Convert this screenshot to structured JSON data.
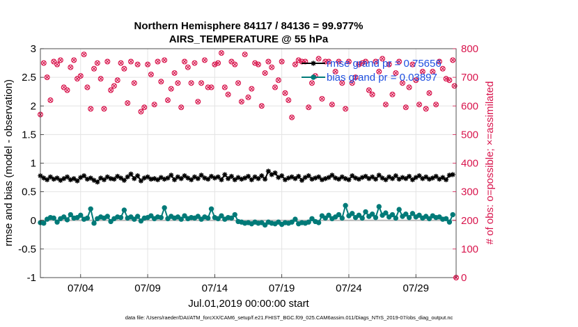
{
  "chart_data": {
    "type": "line",
    "title": "Northern Hemisphere 84117 / 84136 = 99.977%",
    "subtitle": "AIRS_TEMPERATURE @ 55 hPa",
    "xlabel": "Jul.01,2019 00:00:00 start",
    "ylabel": "rmse and bias (model - observation)",
    "y2label": "# of obs: o=possible; ×=assimilated",
    "footnote": "data file: /Users/raeder/DAI/ATM_forcXX/CAM6_setup/f.e21.FHIST_BGC.f09_025.CAM6assim.011/Diags_NTrS_2019-07/obs_diag_output.nc",
    "xlim": [
      0,
      31
    ],
    "ylim": [
      -1,
      3
    ],
    "y2lim": [
      0,
      800
    ],
    "x_ticks": [
      {
        "x": 3,
        "label": "07/04"
      },
      {
        "x": 8,
        "label": "07/09"
      },
      {
        "x": 13,
        "label": "07/14"
      },
      {
        "x": 18,
        "label": "07/19"
      },
      {
        "x": 23,
        "label": "07/24"
      },
      {
        "x": 28,
        "label": "07/29"
      }
    ],
    "y_ticks": [
      -1,
      -0.5,
      0,
      0.5,
      1,
      1.5,
      2,
      2.5,
      3
    ],
    "y_tick_labels": [
      "-1",
      "-0.5",
      "0",
      "0.5",
      "1",
      "1.5",
      "2",
      "2.5",
      "3"
    ],
    "y2_ticks": [
      0,
      100,
      200,
      300,
      400,
      500,
      600,
      700,
      800
    ],
    "y2_tick_labels": [
      "0",
      "100",
      "200",
      "300",
      "400",
      "500",
      "600",
      "700",
      "800"
    ],
    "grid": true,
    "legend_position": "top-right",
    "zero_line": 0,
    "series": [
      {
        "name": "rmse grand pr = 0.75656",
        "color": "#000000",
        "marker": "star",
        "axis": "left",
        "x": [
          0.0,
          0.25,
          0.5,
          0.75,
          1.0,
          1.25,
          1.5,
          1.75,
          2.0,
          2.25,
          2.5,
          2.75,
          3.0,
          3.25,
          3.5,
          3.75,
          4.0,
          4.25,
          4.5,
          4.75,
          5.0,
          5.25,
          5.5,
          5.75,
          6.0,
          6.25,
          6.5,
          6.75,
          7.0,
          7.25,
          7.5,
          7.75,
          8.0,
          8.25,
          8.5,
          8.75,
          9.0,
          9.25,
          9.5,
          9.75,
          10.0,
          10.25,
          10.5,
          10.75,
          11.0,
          11.25,
          11.5,
          11.75,
          12.0,
          12.25,
          12.5,
          12.75,
          13.0,
          13.25,
          13.5,
          13.75,
          14.0,
          14.25,
          14.5,
          14.75,
          15.0,
          15.25,
          15.5,
          15.75,
          16.0,
          16.25,
          16.5,
          16.75,
          17.0,
          17.25,
          17.5,
          17.75,
          18.0,
          18.25,
          18.5,
          18.75,
          19.0,
          19.25,
          19.5,
          19.75,
          20.0,
          20.25,
          20.5,
          20.75,
          21.0,
          21.25,
          21.5,
          21.75,
          22.0,
          22.25,
          22.5,
          22.75,
          23.0,
          23.25,
          23.5,
          23.75,
          24.0,
          24.25,
          24.5,
          24.75,
          25.0,
          25.25,
          25.5,
          25.75,
          26.0,
          26.25,
          26.5,
          26.75,
          27.0,
          27.25,
          27.5,
          27.75,
          28.0,
          28.25,
          28.5,
          28.75,
          29.0,
          29.25,
          29.5,
          29.75,
          30.0,
          30.25,
          30.5,
          30.75
        ],
        "values": [
          0.78,
          0.74,
          0.71,
          0.76,
          0.72,
          0.74,
          0.7,
          0.73,
          0.76,
          0.71,
          0.73,
          0.69,
          0.75,
          0.78,
          0.72,
          0.74,
          0.7,
          0.67,
          0.74,
          0.71,
          0.76,
          0.73,
          0.72,
          0.77,
          0.74,
          0.7,
          0.76,
          0.81,
          0.73,
          0.78,
          0.69,
          0.74,
          0.76,
          0.72,
          0.73,
          0.71,
          0.75,
          0.72,
          0.74,
          0.79,
          0.71,
          0.76,
          0.73,
          0.78,
          0.74,
          0.71,
          0.76,
          0.73,
          0.79,
          0.74,
          0.72,
          0.77,
          0.74,
          0.76,
          0.71,
          0.8,
          0.73,
          0.77,
          0.71,
          0.75,
          0.72,
          0.74,
          0.77,
          0.71,
          0.76,
          0.73,
          0.78,
          0.72,
          0.86,
          0.8,
          0.83,
          0.75,
          0.78,
          0.71,
          0.74,
          0.76,
          0.73,
          0.77,
          0.7,
          0.75,
          0.78,
          0.72,
          0.74,
          0.76,
          0.71,
          0.73,
          0.75,
          0.79,
          0.74,
          0.72,
          0.76,
          0.73,
          0.71,
          0.78,
          0.74,
          0.72,
          0.75,
          0.77,
          0.73,
          0.76,
          0.72,
          0.79,
          0.74,
          0.71,
          0.76,
          0.73,
          0.78,
          0.72,
          0.75,
          0.73,
          0.77,
          0.71,
          0.75,
          0.78,
          0.73,
          0.76,
          0.72,
          0.74,
          0.77,
          0.72,
          0.75,
          0.71,
          0.79,
          0.8
        ]
      },
      {
        "name": "bias grand pr = 0.03897",
        "color": "#007a78",
        "marker": "circle",
        "axis": "left",
        "x": [
          0.0,
          0.25,
          0.5,
          0.75,
          1.0,
          1.25,
          1.5,
          1.75,
          2.0,
          2.25,
          2.5,
          2.75,
          3.0,
          3.25,
          3.5,
          3.75,
          4.0,
          4.25,
          4.5,
          4.75,
          5.0,
          5.25,
          5.5,
          5.75,
          6.0,
          6.25,
          6.5,
          6.75,
          7.0,
          7.25,
          7.5,
          7.75,
          8.0,
          8.25,
          8.5,
          8.75,
          9.0,
          9.25,
          9.5,
          9.75,
          10.0,
          10.25,
          10.5,
          10.75,
          11.0,
          11.25,
          11.5,
          11.75,
          12.0,
          12.25,
          12.5,
          12.75,
          13.0,
          13.25,
          13.5,
          13.75,
          14.0,
          14.25,
          14.5,
          14.75,
          15.0,
          15.25,
          15.5,
          15.75,
          16.0,
          16.25,
          16.5,
          16.75,
          17.0,
          17.25,
          17.5,
          17.75,
          18.0,
          18.25,
          18.5,
          18.75,
          19.0,
          19.25,
          19.5,
          19.75,
          20.0,
          20.25,
          20.5,
          20.75,
          21.0,
          21.25,
          21.5,
          21.75,
          22.0,
          22.25,
          22.5,
          22.75,
          23.0,
          23.25,
          23.5,
          23.75,
          24.0,
          24.25,
          24.5,
          24.75,
          25.0,
          25.25,
          25.5,
          25.75,
          26.0,
          26.25,
          26.5,
          26.75,
          27.0,
          27.25,
          27.5,
          27.75,
          28.0,
          28.25,
          28.5,
          28.75,
          29.0,
          29.25,
          29.5,
          29.75,
          30.0,
          30.25,
          30.5,
          30.75
        ],
        "values": [
          -0.04,
          -0.05,
          0.02,
          0.05,
          0.04,
          -0.03,
          0.03,
          0.06,
          0.01,
          0.1,
          0.04,
          0.05,
          0.09,
          0.02,
          0.04,
          0.2,
          -0.05,
          0.03,
          0.06,
          0.04,
          0.07,
          -0.02,
          0.03,
          0.06,
          0.05,
          0.18,
          0.04,
          0.06,
          0.02,
          0.07,
          -0.01,
          0.04,
          0.05,
          0.08,
          0.03,
          0.06,
          0.05,
          0.22,
          0.03,
          0.07,
          0.04,
          0.06,
          0.02,
          0.08,
          0.03,
          0.05,
          0.04,
          0.07,
          0.02,
          0.06,
          0.04,
          0.2,
          0.05,
          0.03,
          0.08,
          0.02,
          0.05,
          0.04,
          0.1,
          -0.02,
          -0.03,
          -0.05,
          -0.04,
          -0.06,
          -0.03,
          -0.05,
          -0.04,
          -0.08,
          -0.03,
          -0.05,
          -0.06,
          -0.03,
          -0.07,
          -0.04,
          -0.05,
          -0.03,
          0.02,
          -0.06,
          -0.04,
          -0.05,
          -0.03,
          0.03,
          -0.02,
          -0.04,
          0.08,
          0.04,
          0.09,
          0.03,
          0.06,
          0.1,
          0.04,
          0.26,
          0.08,
          0.12,
          0.05,
          0.09,
          0.04,
          0.15,
          0.07,
          0.11,
          0.05,
          0.24,
          0.09,
          0.13,
          0.06,
          0.1,
          0.04,
          0.19,
          0.07,
          0.11,
          0.05,
          0.12,
          0.06,
          0.09,
          0.04,
          0.07,
          0.03,
          0.08,
          0.05,
          0.06,
          0.02,
          0.03,
          -0.03,
          0.1
        ]
      },
      {
        "name": "",
        "color": "#d8144c",
        "marker": "circle-x",
        "axis": "right",
        "x": [
          0.0,
          0.25,
          0.5,
          0.75,
          1.0,
          1.25,
          1.5,
          1.75,
          2.0,
          2.25,
          2.5,
          2.75,
          3.0,
          3.25,
          3.5,
          3.75,
          4.0,
          4.25,
          4.5,
          4.75,
          5.0,
          5.25,
          5.5,
          5.75,
          6.0,
          6.25,
          6.5,
          6.75,
          7.0,
          7.25,
          7.5,
          7.75,
          8.0,
          8.25,
          8.5,
          8.75,
          9.0,
          9.25,
          9.5,
          9.75,
          10.0,
          10.25,
          10.5,
          10.75,
          11.0,
          11.25,
          11.5,
          11.75,
          12.0,
          12.25,
          12.5,
          12.75,
          13.0,
          13.25,
          13.5,
          13.75,
          14.0,
          14.25,
          14.5,
          14.75,
          15.0,
          15.25,
          15.5,
          15.75,
          16.0,
          16.25,
          16.5,
          16.75,
          17.0,
          17.25,
          17.5,
          17.75,
          18.0,
          18.25,
          18.5,
          18.75,
          19.0,
          19.25,
          19.5,
          19.75,
          20.0,
          20.25,
          20.5,
          20.75,
          21.0,
          21.25,
          21.5,
          21.75,
          22.0,
          22.25,
          22.5,
          22.75,
          23.0,
          23.25,
          23.5,
          23.75,
          24.0,
          24.25,
          24.5,
          24.75,
          25.0,
          25.25,
          25.5,
          25.75,
          26.0,
          26.25,
          26.5,
          26.75,
          27.0,
          27.25,
          27.5,
          27.75,
          28.0,
          28.25,
          28.5,
          28.75,
          29.0,
          29.25,
          29.5,
          29.75,
          30.0,
          30.25,
          30.5,
          30.75,
          30.875,
          31.0
        ],
        "values": [
          570,
          750,
          700,
          620,
          755,
          745,
          760,
          665,
          655,
          735,
          760,
          695,
          705,
          780,
          665,
          590,
          730,
          750,
          695,
          590,
          755,
          655,
          670,
          690,
          750,
          730,
          610,
          755,
          680,
          745,
          580,
          595,
          745,
          710,
          605,
          755,
          685,
          760,
          620,
          660,
          715,
          680,
          595,
          755,
          735,
          680,
          750,
          615,
          680,
          760,
          665,
          665,
          745,
          750,
          785,
          665,
          640,
          755,
          745,
          680,
          615,
          780,
          630,
          660,
          750,
          745,
          600,
          715,
          755,
          735,
          665,
          690,
          755,
          645,
          620,
          560,
          745,
          760,
          755,
          755,
          595,
          680,
          705,
          765,
          625,
          755,
          755,
          605,
          720,
          755,
          680,
          590,
          755,
          680,
          700,
          745,
          750,
          755,
          655,
          640,
          755,
          720,
          765,
          605,
          745,
          640,
          715,
          755,
          680,
          595,
          665,
          745,
          690,
          605,
          720,
          590,
          645,
          720,
          605,
          755,
          730,
          695,
          690,
          760,
          670,
          0
        ]
      }
    ]
  }
}
